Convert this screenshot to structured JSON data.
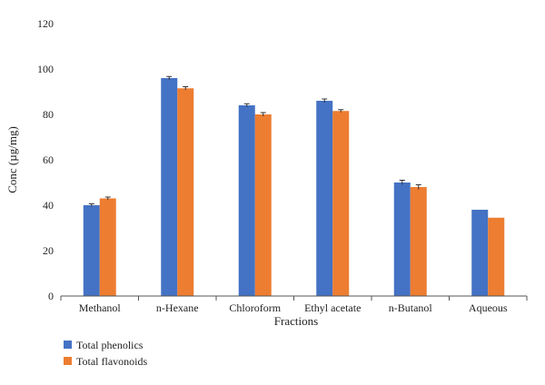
{
  "chart_data": {
    "type": "bar",
    "title": "",
    "xlabel": "Fractions",
    "ylabel": "Conc (µg/mg)",
    "ylim": [
      0,
      120
    ],
    "yticks": [
      0,
      20,
      40,
      60,
      80,
      100,
      120
    ],
    "grid": false,
    "legend_position": "bottom-left",
    "categories": [
      "Methanol",
      "n-Hexane",
      "Chloroform",
      "Ethyl acetate",
      "n-Butanol",
      "Aqueous"
    ],
    "series": [
      {
        "name": "Total phenolics",
        "color": "#4472c4",
        "values": [
          40,
          96,
          84,
          86,
          50,
          38
        ],
        "error": [
          0.6,
          0.7,
          0.7,
          0.8,
          1.0,
          0
        ]
      },
      {
        "name": "Total flavonoids",
        "color": "#ed7d31",
        "values": [
          43,
          91.5,
          80,
          81.5,
          48,
          34.5
        ],
        "error": [
          0.6,
          0.7,
          0.8,
          0.6,
          1.0,
          0
        ]
      }
    ]
  }
}
